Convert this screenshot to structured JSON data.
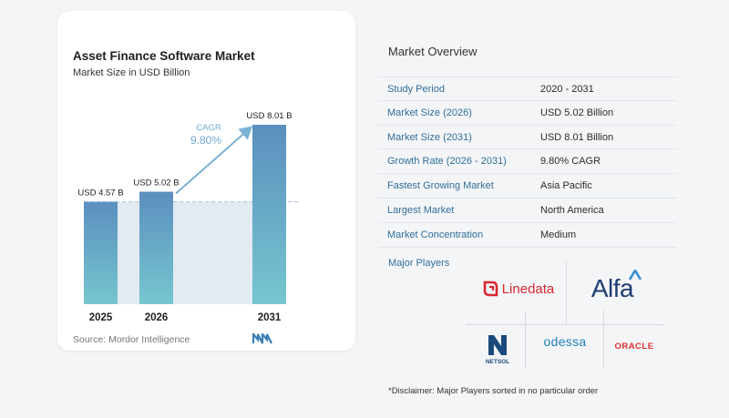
{
  "chart": {
    "title": "Asset Finance Software Market",
    "subtitle": "Market Size in USD Billion",
    "source": "Source: Mordor Intelligence",
    "cagr_label": "CAGR",
    "cagr_value": "9.80%"
  },
  "chart_data": {
    "type": "bar",
    "title": "Asset Finance Software Market",
    "subtitle": "Market Size in USD Billion",
    "categories": [
      "2025",
      "2026",
      "2031"
    ],
    "values": [
      4.57,
      5.02,
      8.01
    ],
    "data_labels": [
      "USD 4.57 B",
      "USD 5.02 B",
      "USD 8.01 B"
    ],
    "ylim": [
      0,
      8.01
    ],
    "grid": false,
    "annotation": {
      "text": "CAGR 9.80%",
      "from": "2026",
      "to": "2031"
    },
    "colors": {
      "bar_top": "#5b8fbe",
      "bar_bottom": "#76c6cf",
      "band": "#e3ebf2",
      "arrow": "#7ab0d4",
      "cagr_text": "#6ea7cf"
    }
  },
  "overview": {
    "title": "Market Overview",
    "rows": [
      {
        "key": "Study Period",
        "value": "2020 - 2031"
      },
      {
        "key": "Market Size (2026)",
        "value": "USD 5.02 Billion"
      },
      {
        "key": "Market Size (2031)",
        "value": "USD 8.01 Billion"
      },
      {
        "key": "Growth Rate (2026 - 2031)",
        "value": "9.80% CAGR"
      },
      {
        "key": "Fastest Growing Market",
        "value": "Asia Pacific"
      },
      {
        "key": "Largest Market",
        "value": "North America"
      },
      {
        "key": "Market Concentration",
        "value": "Medium"
      }
    ]
  },
  "players": {
    "title": "Major Players",
    "logos": {
      "linedata": "Linedata",
      "alfa": "Alfa",
      "netsol": "NETSOL",
      "odessa": "odessa",
      "oracle": "ORACLE"
    }
  },
  "disclaimer": "*Disclaimer: Major Players sorted in no particular order"
}
